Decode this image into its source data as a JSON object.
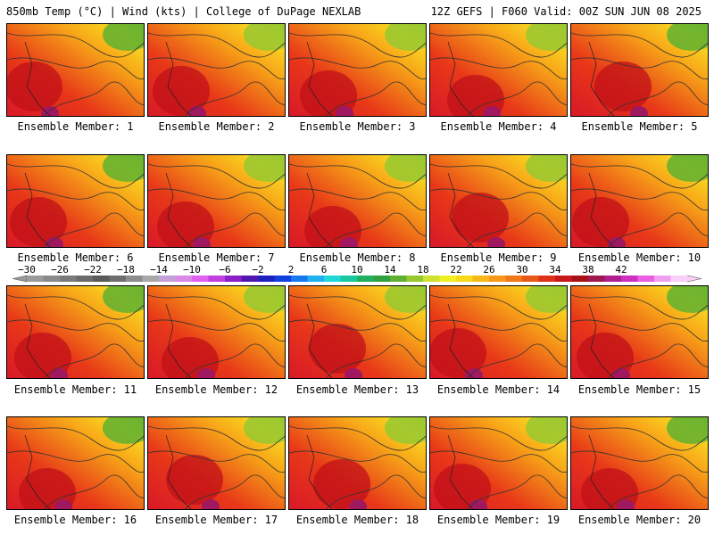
{
  "header": {
    "left": "850mb Temp (°C) | Wind (kts) | College of DuPage NEXLAB",
    "right": "12Z GEFS | F060 Valid: 00Z SUN JUN 08 2025"
  },
  "members": [
    {
      "label": "Ensemble Member: 1"
    },
    {
      "label": "Ensemble Member: 2"
    },
    {
      "label": "Ensemble Member: 3"
    },
    {
      "label": "Ensemble Member: 4"
    },
    {
      "label": "Ensemble Member: 5"
    },
    {
      "label": "Ensemble Member: 6"
    },
    {
      "label": "Ensemble Member: 7"
    },
    {
      "label": "Ensemble Member: 8"
    },
    {
      "label": "Ensemble Member: 9"
    },
    {
      "label": "Ensemble Member: 10"
    },
    {
      "label": "Ensemble Member: 11"
    },
    {
      "label": "Ensemble Member: 12"
    },
    {
      "label": "Ensemble Member: 13"
    },
    {
      "label": "Ensemble Member: 14"
    },
    {
      "label": "Ensemble Member: 15"
    },
    {
      "label": "Ensemble Member: 16"
    },
    {
      "label": "Ensemble Member: 17"
    },
    {
      "label": "Ensemble Member: 18"
    },
    {
      "label": "Ensemble Member: 19"
    },
    {
      "label": "Ensemble Member: 20"
    }
  ],
  "colorbar": {
    "labels": [
      "−30",
      "−26",
      "−22",
      "−18",
      "−14",
      "−10",
      "−6",
      "−2",
      "2",
      "6",
      "10",
      "14",
      "18",
      "22",
      "26",
      "30",
      "34",
      "38",
      "42"
    ],
    "colors": [
      "#9a9a9a",
      "#8a8a8a",
      "#7a7a7a",
      "#6a6a6a",
      "#5a5a5a",
      "#6e6e6e",
      "#8c8c8c",
      "#a8a8a8",
      "#c4a0d6",
      "#d88ae6",
      "#e060f0",
      "#c040e0",
      "#8a20c8",
      "#5018b0",
      "#2020c0",
      "#1040e0",
      "#1878f0",
      "#20b0f0",
      "#20d8d8",
      "#18c8a0",
      "#20b060",
      "#30a040",
      "#60b030",
      "#98c830",
      "#d0e030",
      "#f0f020",
      "#f8d818",
      "#f8b818",
      "#f89818",
      "#f07818",
      "#e85818",
      "#e03018",
      "#c81818",
      "#a81018",
      "#a01850",
      "#b02090",
      "#d030c0",
      "#e860e0",
      "#f0a0f0",
      "#f8d0f8"
    ]
  }
}
